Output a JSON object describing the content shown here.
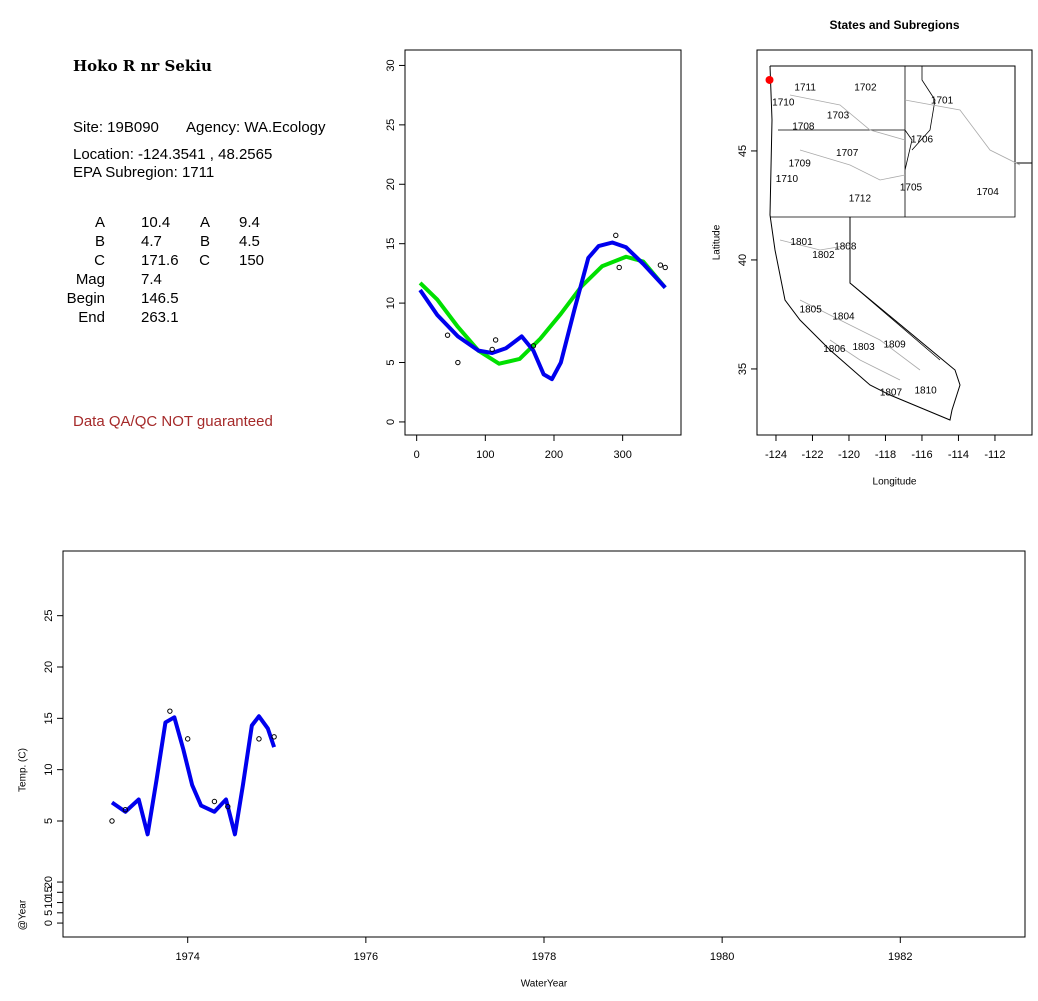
{
  "info": {
    "title": "Hoko R nr Sekiu",
    "site": "Site: 19B090",
    "agency": "Agency: WA.Ecology",
    "location": "Location: -124.3541 , 48.2565",
    "subregion": "EPA Subregion: 1711",
    "params": [
      [
        "A",
        "10.4",
        "A",
        "9.4"
      ],
      [
        "B",
        "4.7",
        "B",
        "4.5"
      ],
      [
        "C",
        "171.6",
        "C",
        "150"
      ],
      [
        "Mag",
        "7.4"
      ],
      [
        "Begin",
        "146.5"
      ],
      [
        "End",
        "263.1"
      ]
    ],
    "note": "Data QA/QC NOT guaranteed"
  },
  "chart_data": [
    {
      "type": "line",
      "xlim": [
        -17,
        385
      ],
      "ylim": [
        -1.1,
        31.3
      ],
      "xticks": [
        0,
        100,
        200,
        300
      ],
      "yticks": [
        0,
        5,
        10,
        15,
        20,
        25,
        30
      ],
      "series": [
        {
          "style": "line",
          "color": "#00e000",
          "x": [
            5,
            30,
            60,
            90,
            120,
            150,
            180,
            210,
            240,
            270,
            305,
            330,
            362
          ],
          "values": [
            11.7,
            10.3,
            8.0,
            6.0,
            4.9,
            5.3,
            7.0,
            9.1,
            11.4,
            13.1,
            13.9,
            13.5,
            11.3
          ]
        },
        {
          "style": "line",
          "color": "#0000ee",
          "x": [
            5,
            30,
            60,
            90,
            110,
            130,
            153,
            170,
            185,
            197,
            210,
            230,
            250,
            265,
            285,
            305,
            330,
            362
          ],
          "values": [
            11.1,
            9.0,
            7.2,
            6.0,
            5.8,
            6.2,
            7.2,
            6.0,
            4.0,
            3.6,
            5.0,
            9.5,
            13.8,
            14.8,
            15.1,
            14.7,
            13.3,
            11.3
          ]
        },
        {
          "style": "points",
          "color": "#000000",
          "x": [
            45,
            60,
            110,
            115,
            170,
            290,
            295,
            355,
            362
          ],
          "values": [
            7.3,
            5.0,
            6.1,
            6.9,
            6.4,
            15.7,
            13.0,
            13.2,
            13.0
          ]
        }
      ]
    },
    {
      "type": "map",
      "title": "States and Subregions",
      "xlabel": "Longitude",
      "ylabel": "Latitude",
      "xlim": [
        -125.04,
        -109.97
      ],
      "ylim": [
        31.97,
        49.63
      ],
      "xticks": [
        -124,
        -122,
        -120,
        -118,
        -116,
        -114,
        -112
      ],
      "yticks": [
        35,
        40,
        45
      ],
      "points": {
        "color": "#ff0000",
        "x": [
          -124.3541
        ],
        "values": [
          48.2565
        ]
      },
      "regions": {
        "labels": [
          "1702",
          "1701",
          "1711",
          "1710",
          "1703",
          "1708",
          "1706",
          "1707",
          "1709",
          "1710",
          "1705",
          "1704",
          "1712",
          "1801",
          "1808",
          "1802",
          "1805",
          "1804",
          "1809",
          "1803",
          "1806",
          "1810",
          "1807"
        ],
        "x": [
          -119.1,
          -114.9,
          -122.4,
          -123.6,
          -120.6,
          -122.5,
          -116.0,
          -120.1,
          -122.7,
          -123.4,
          -116.6,
          -112.4,
          -119.4,
          -122.6,
          -120.2,
          -121.4,
          -122.1,
          -120.3,
          -117.5,
          -119.2,
          -120.8,
          -115.8,
          -117.7
        ],
        "y": [
          47.9,
          47.3,
          47.9,
          47.2,
          46.6,
          46.1,
          45.5,
          44.9,
          44.4,
          43.7,
          43.3,
          43.1,
          42.8,
          40.8,
          40.6,
          40.2,
          37.7,
          37.4,
          36.1,
          36.0,
          35.9,
          34.0,
          33.9
        ]
      }
    },
    {
      "type": "line",
      "xlabel": "WaterYear",
      "ylabel": "Temp. (C)",
      "y2label": "@Year",
      "xlim": [
        1972.6,
        1983.4
      ],
      "ylim": [
        -6.3,
        31.3
      ],
      "y2lim": [
        -6.8,
        181.5
      ],
      "xticks": [
        1974,
        1976,
        1978,
        1980,
        1982
      ],
      "yticks": [
        5,
        10,
        15,
        20,
        25
      ],
      "y2ticks": [
        0,
        5,
        10,
        15,
        20
      ],
      "series": [
        {
          "style": "line",
          "color": "#0000ee",
          "x": [
            1973.15,
            1973.3,
            1973.45,
            1973.55,
            1973.65,
            1973.75,
            1973.85,
            1973.95,
            1974.05,
            1974.15,
            1974.3,
            1974.43,
            1974.53,
            1974.62,
            1974.72,
            1974.8,
            1974.9,
            1974.97
          ],
          "values": [
            6.8,
            5.9,
            7.1,
            3.7,
            9.0,
            14.6,
            15.1,
            12.0,
            8.5,
            6.5,
            5.9,
            7.1,
            3.7,
            8.5,
            14.3,
            15.2,
            14.0,
            12.2
          ]
        },
        {
          "style": "points",
          "color": "#000000",
          "x": [
            1973.15,
            1973.3,
            1973.8,
            1974.0,
            1974.3,
            1974.45,
            1974.8,
            1974.97
          ],
          "values": [
            5.0,
            6.1,
            15.7,
            13.0,
            6.9,
            6.4,
            13.0,
            13.2
          ]
        }
      ]
    }
  ]
}
